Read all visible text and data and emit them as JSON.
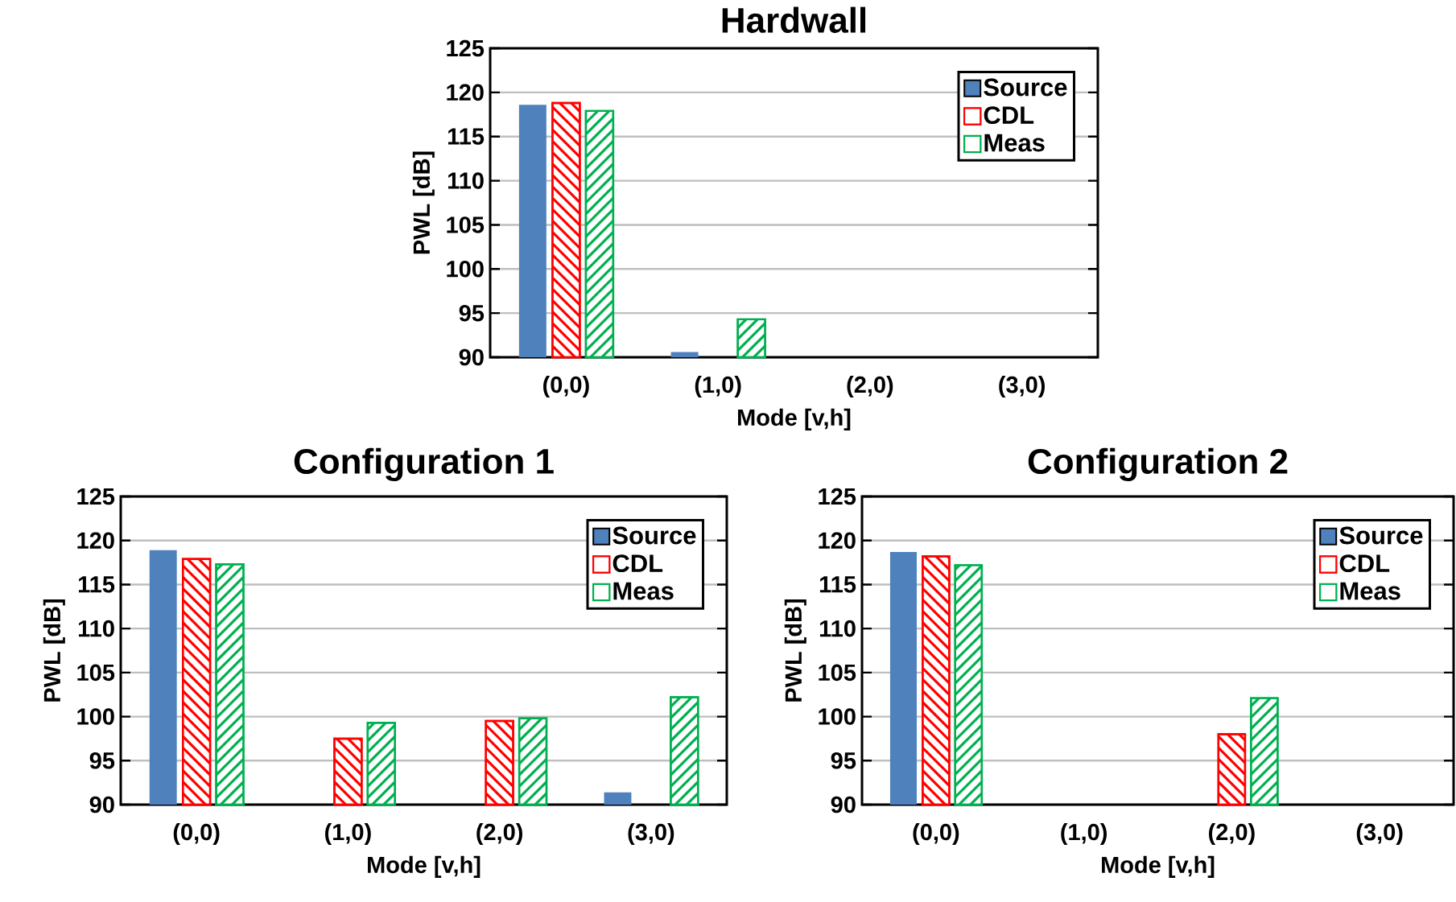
{
  "chart_data": [
    {
      "type": "bar",
      "title": "Hardwall",
      "xlabel": "Mode [v,h]",
      "ylabel": "PWL [dB]",
      "categories": [
        "(0,0)",
        "(1,0)",
        "(2,0)",
        "(3,0)"
      ],
      "series": [
        {
          "name": "Source",
          "color": "#4f81bd",
          "values": [
            118.6,
            90.6,
            null,
            null
          ]
        },
        {
          "name": "CDL",
          "color": "#ff0000",
          "values": [
            118.8,
            null,
            null,
            null
          ]
        },
        {
          "name": "Meas",
          "color": "#00b050",
          "values": [
            117.9,
            94.3,
            null,
            null
          ]
        }
      ],
      "ylim": [
        90,
        125
      ],
      "yticks": [
        90,
        95,
        100,
        105,
        110,
        115,
        120,
        125
      ],
      "grid": "y",
      "legend": "top right"
    },
    {
      "type": "bar",
      "title": "Configuration 1",
      "xlabel": "Mode [v,h]",
      "ylabel": "PWL [dB]",
      "categories": [
        "(0,0)",
        "(1,0)",
        "(2,0)",
        "(3,0)"
      ],
      "series": [
        {
          "name": "Source",
          "color": "#4f81bd",
          "values": [
            118.9,
            null,
            null,
            91.4
          ]
        },
        {
          "name": "CDL",
          "color": "#ff0000",
          "values": [
            117.9,
            97.5,
            99.5,
            null
          ]
        },
        {
          "name": "Meas",
          "color": "#00b050",
          "values": [
            117.3,
            99.3,
            99.8,
            102.2
          ]
        }
      ],
      "ylim": [
        90,
        125
      ],
      "yticks": [
        90,
        95,
        100,
        105,
        110,
        115,
        120,
        125
      ],
      "grid": "y",
      "legend": "top right"
    },
    {
      "type": "bar",
      "title": "Configuration 2",
      "xlabel": "Mode [v,h]",
      "ylabel": "PWL [dB]",
      "categories": [
        "(0,0)",
        "(1,0)",
        "(2,0)",
        "(3,0)"
      ],
      "series": [
        {
          "name": "Source",
          "color": "#4f81bd",
          "values": [
            118.7,
            null,
            null,
            null
          ]
        },
        {
          "name": "CDL",
          "color": "#ff0000",
          "values": [
            118.2,
            null,
            98.0,
            null
          ]
        },
        {
          "name": "Meas",
          "color": "#00b050",
          "values": [
            117.2,
            null,
            102.1,
            null
          ]
        }
      ],
      "ylim": [
        90,
        125
      ],
      "yticks": [
        90,
        95,
        100,
        105,
        110,
        115,
        120,
        125
      ],
      "grid": "y",
      "legend": "top right"
    }
  ]
}
